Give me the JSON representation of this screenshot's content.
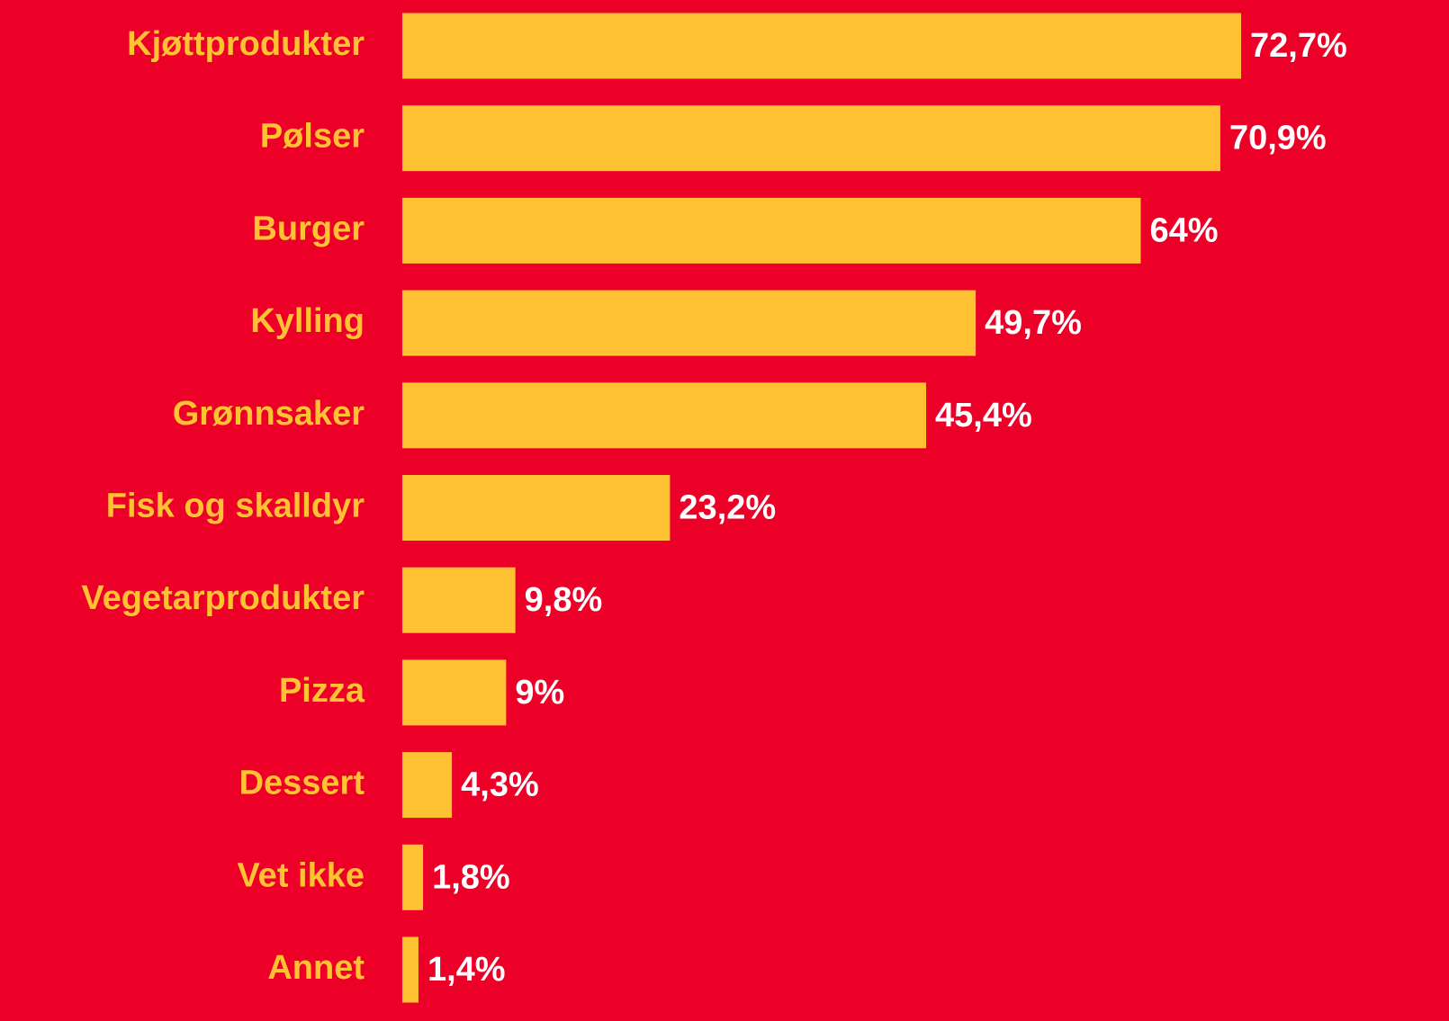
{
  "chart_data": {
    "type": "bar",
    "orientation": "horizontal",
    "categories": [
      "Kjøttprodukter",
      "Pølser",
      "Burger",
      "Kylling",
      "Grønnsaker",
      "Fisk og skalldyr",
      "Vegetarprodukter",
      "Pizza",
      "Dessert",
      "Vet ikke",
      "Annet"
    ],
    "values": [
      72.7,
      70.9,
      64,
      49.7,
      45.4,
      23.2,
      9.8,
      9,
      4.3,
      1.8,
      1.4
    ],
    "value_labels": [
      "72,7%",
      "70,9%",
      "64%",
      "49,7%",
      "45,4%",
      "23,2%",
      "9,8%",
      "9%",
      "4,3%",
      "1,8%",
      "1,4%"
    ],
    "color": "#ffc233"
  }
}
